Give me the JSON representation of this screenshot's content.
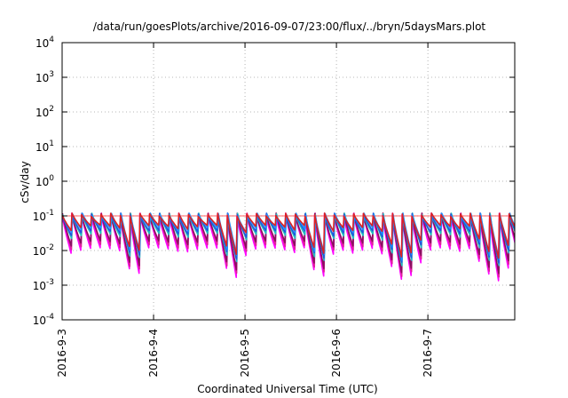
{
  "chart_data": {
    "type": "line",
    "title": "/data/run/goesPlots/archive/2016-09-07/23:00/flux/../bryn/5daysMars.plot",
    "xlabel": "Coordinated Universal Time (UTC)",
    "ylabel": "cSv/day",
    "x_ticks": [
      "2016-9-3",
      "2016-9-4",
      "2016-9-5",
      "2016-9-6",
      "2016-9-7"
    ],
    "y_ticks": [
      {
        "base": "10",
        "exp": "-4"
      },
      {
        "base": "10",
        "exp": "-3"
      },
      {
        "base": "10",
        "exp": "-2"
      },
      {
        "base": "10",
        "exp": "-1"
      },
      {
        "base": "10",
        "exp": "0"
      },
      {
        "base": "10",
        "exp": "1"
      },
      {
        "base": "10",
        "exp": "2"
      },
      {
        "base": "10",
        "exp": "3"
      },
      {
        "base": "10",
        "exp": "4"
      }
    ],
    "y_scale": "log",
    "ylim": [
      0.0001,
      10000
    ],
    "xlim_days": [
      0,
      4.95
    ],
    "grid": true,
    "reference_line": 0.1,
    "sawtooth": {
      "period_hours": 2.55,
      "peak": 0.12,
      "trough_low": 0.0011,
      "trough_high": 0.012,
      "low_trough_windows_days": [
        [
          0.55,
          0.85
        ],
        [
          1.6,
          1.95
        ],
        [
          2.55,
          2.9
        ],
        [
          3.35,
          3.95
        ],
        [
          4.35,
          4.95
        ]
      ]
    },
    "series": [
      {
        "color": "#ff00ff",
        "scale": 1.0,
        "phase": 0.0
      },
      {
        "color": "#e0209a",
        "scale": 1.25,
        "phase": 0.04
      },
      {
        "color": "#8a1060",
        "scale": 1.6,
        "phase": 0.02
      },
      {
        "color": "#20c0c0",
        "scale": 2.6,
        "phase": 0.06
      },
      {
        "color": "#2255dd",
        "scale": 3.2,
        "phase": 0.03
      },
      {
        "color": "#1e90ff",
        "scale": 3.8,
        "phase": 0.08
      },
      {
        "color": "#dd2222",
        "scale": 4.5,
        "phase": 0.01
      }
    ]
  }
}
